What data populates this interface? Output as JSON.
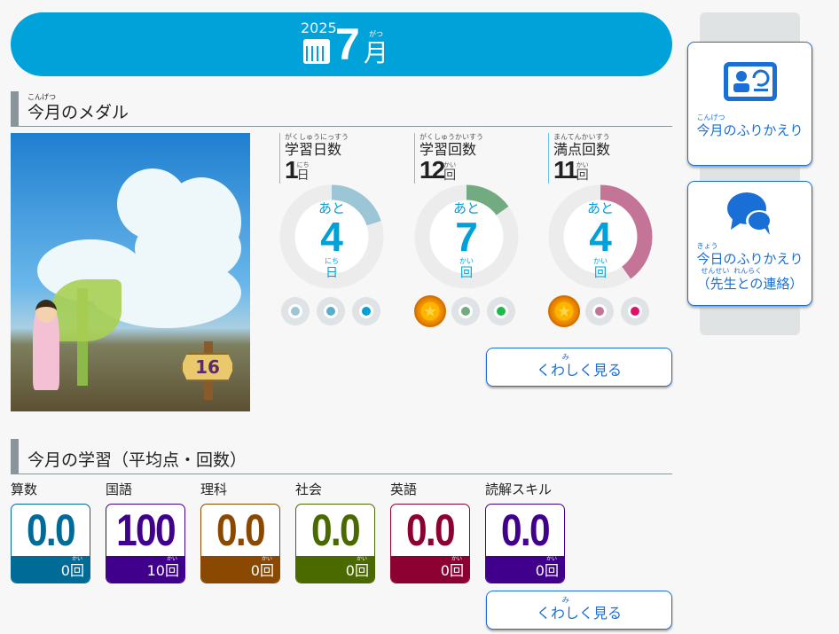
{
  "header": {
    "year": "2025",
    "month": "7",
    "month_unit": "月",
    "month_ruby": "がつ",
    "icon": "calendar-icon"
  },
  "medal_section": {
    "title": "今月のメダル",
    "title_ruby": "こんげつ",
    "badge_number": "16"
  },
  "stats": [
    {
      "name": "学習日数",
      "ruby": "がくしゅうにっすう",
      "value": "1",
      "unit": "日",
      "unit_ruby": "にち",
      "remain_label": "あと",
      "remain": "4",
      "remain_unit": "日",
      "progress": 0.2,
      "color": "#9cc6d6",
      "dots": [
        "#9cc6d6",
        "#5aaec9",
        "#00a0d8"
      ],
      "medals": 0
    },
    {
      "name": "学習回数",
      "ruby": "がくしゅうかいすう",
      "value": "12",
      "unit": "回",
      "unit_ruby": "かい",
      "remain_label": "あと",
      "remain": "7",
      "remain_unit": "回",
      "progress": 0.15,
      "color": "#73ab80",
      "dots": [
        "#73ab80",
        "#1db949"
      ],
      "medals": 1
    },
    {
      "name": "満点回数",
      "ruby": "まんてんかいすう",
      "value": "11",
      "unit": "回",
      "unit_ruby": "かい",
      "remain_label": "あと",
      "remain": "4",
      "remain_unit": "回",
      "progress": 0.4,
      "color": "#c47497",
      "dots": [
        "#c47497",
        "#e0106a"
      ],
      "medals": 1
    }
  ],
  "detail_button": {
    "label": "くわしく見る",
    "ruby": "み"
  },
  "study_section": {
    "title": "今月の学習（平均点・回数）"
  },
  "subjects": [
    {
      "name": "算数",
      "score": "0.0",
      "count": "0",
      "unit": "回",
      "color": "#006b96"
    },
    {
      "name": "国語",
      "score": "100",
      "count": "10",
      "unit": "回",
      "color": "#40008c"
    },
    {
      "name": "理科",
      "score": "0.0",
      "count": "0",
      "unit": "回",
      "color": "#8a4800"
    },
    {
      "name": "社会",
      "score": "0.0",
      "count": "0",
      "unit": "回",
      "color": "#4a6a00"
    },
    {
      "name": "英語",
      "score": "0.0",
      "count": "0",
      "unit": "回",
      "color": "#8c0032"
    },
    {
      "name": "読解スキル",
      "score": "0.0",
      "count": "0",
      "unit": "回",
      "color": "#40008c"
    }
  ],
  "side": {
    "review_month": "今月のふりかえり",
    "review_month_ruby": "こんげつ",
    "review_today": "今日のふりかえり",
    "review_today_ruby": "きょう",
    "contact": "（先生との連絡）",
    "contact_ruby1": "せんせい",
    "contact_ruby2": "れんらく"
  }
}
